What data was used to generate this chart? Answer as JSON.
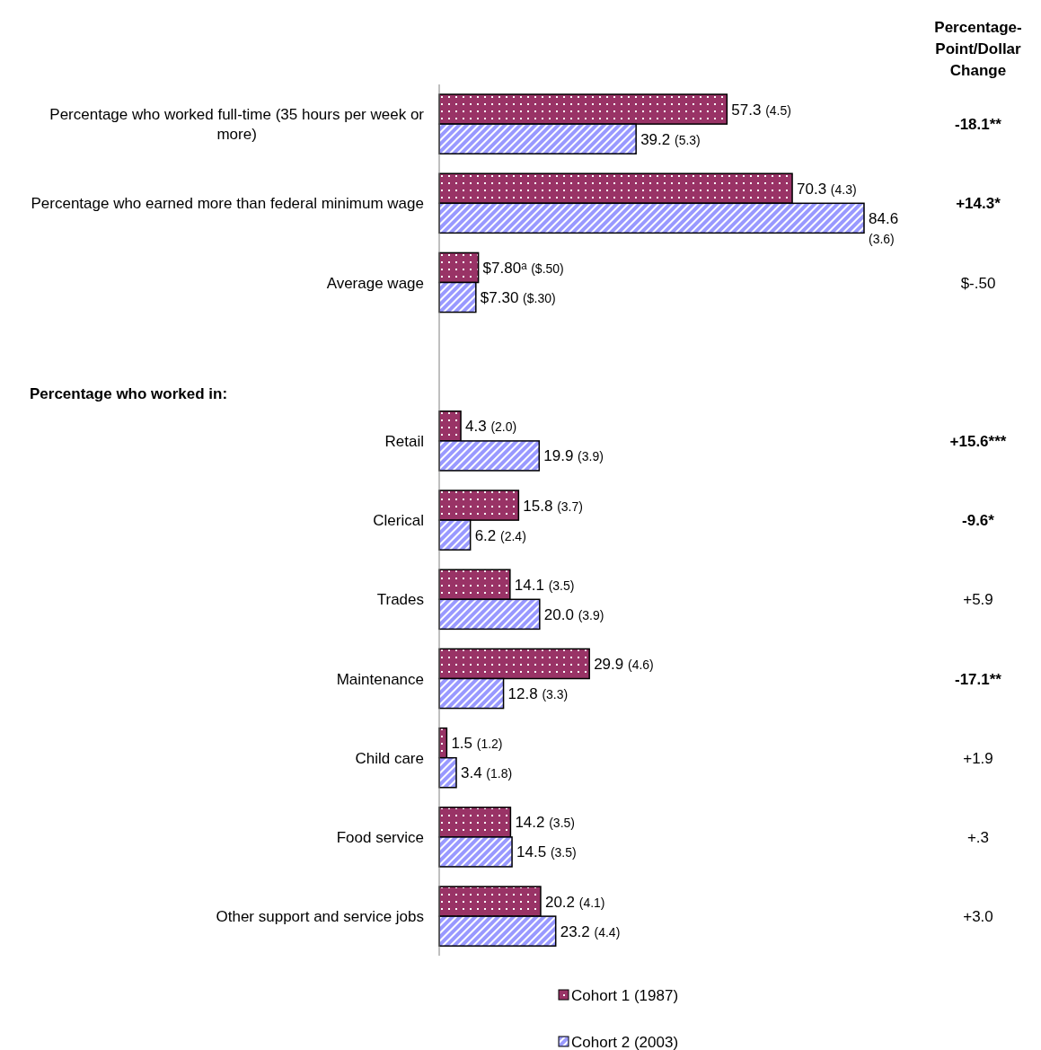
{
  "chart_data": {
    "type": "bar",
    "orientation": "horizontal",
    "legend": "bottom",
    "categories": [
      "Percentage who worked full-time (35 hours per week or more)",
      "Percentage who earned more than federal minimum wage",
      "Average wage",
      null,
      "Retail",
      "Clerical",
      "Trades",
      "Maintenance",
      "Child care",
      "Food service",
      "Other support and service jobs"
    ],
    "series": [
      {
        "name": "Cohort 1 (1987)",
        "color": "#993366",
        "values": [
          57.3,
          70.3,
          7.8,
          null,
          4.3,
          15.8,
          14.1,
          29.9,
          1.5,
          14.2,
          20.2
        ],
        "value_labels": [
          "57.3 (4.5)",
          "70.3 (4.3)",
          "$7.80ᵃ ($.50)",
          null,
          "4.3 (2.0)",
          "15.8 (3.7)",
          "14.1 (3.5)",
          "29.9 (4.6)",
          "1.5 (1.2)",
          "14.2 (3.5)",
          "20.2 (4.1)"
        ]
      },
      {
        "name": "Cohort 2 (2003)",
        "color": "#9999ff",
        "values": [
          39.2,
          84.6,
          7.3,
          null,
          19.9,
          6.2,
          20.0,
          12.8,
          3.4,
          14.5,
          23.2
        ],
        "value_labels": [
          "39.2 (5.3)",
          "84.6 (3.6)",
          "$7.30 ($.30)",
          null,
          "19.9 (3.9)",
          "6.2 (2.4)",
          "20.0 (3.9)",
          "12.8 (3.3)",
          "3.4 (1.8)",
          "14.5 (3.5)",
          "23.2 (4.4)"
        ]
      }
    ],
    "annotations": [
      "Percentage-Point/Dollar Change",
      "Percentage who worked in:",
      "-18.1**",
      "+14.3*",
      "$-.50",
      "+15.6***",
      "-9.6*",
      "+5.9",
      "-17.1**",
      "+1.9",
      "+.3",
      "+3.0"
    ]
  }
}
